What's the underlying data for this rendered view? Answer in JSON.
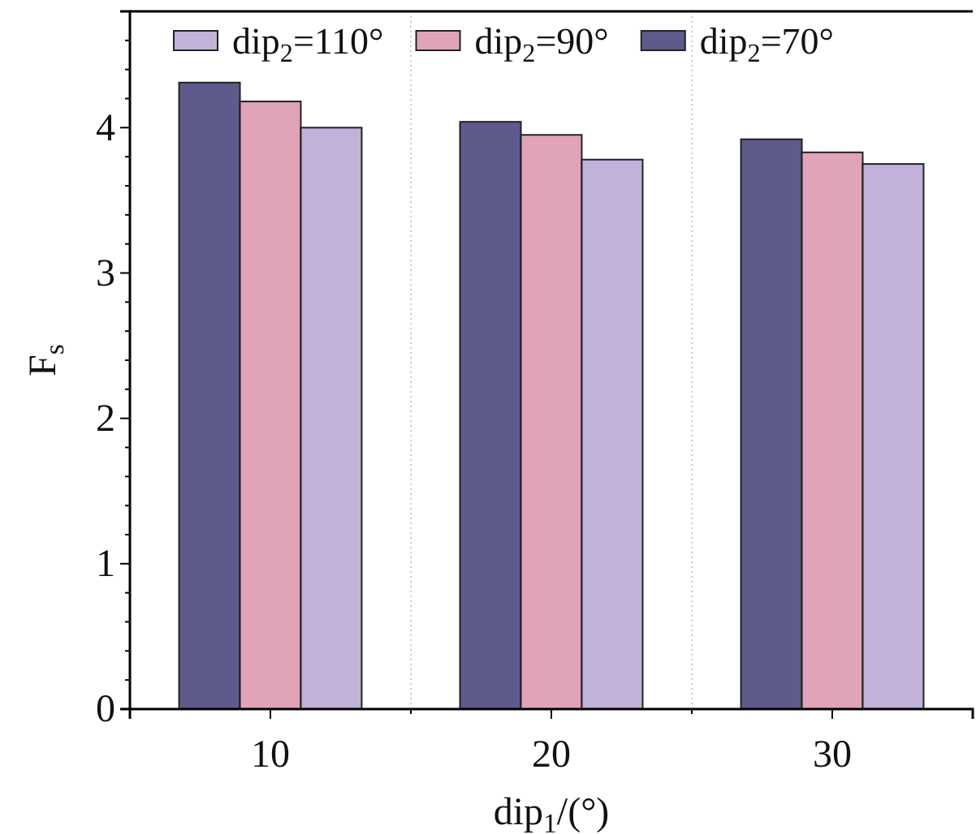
{
  "chart_data": {
    "type": "bar",
    "xlabel": "dip$_{1}$/(°)",
    "ylabel": "F$_{s}$",
    "categories": [
      "10",
      "20",
      "30"
    ],
    "series": [
      {
        "name": "dip$_{2}$=70°",
        "color": "#5e5b8c",
        "values": [
          4.31,
          4.04,
          3.92
        ]
      },
      {
        "name": "dip$_{2}$=90°",
        "color": "#e0a4b8",
        "values": [
          4.18,
          3.95,
          3.83
        ]
      },
      {
        "name": "dip$_{2}$=110°",
        "color": "#c2b1d8",
        "values": [
          4.0,
          3.78,
          3.75
        ]
      }
    ],
    "ylim": [
      0,
      4.8
    ],
    "yticks": [
      0,
      {
        "value": 0.2,
        "label": null
      },
      {
        "value": 0.4,
        "label": null
      },
      {
        "value": 0.6,
        "label": null
      },
      {
        "value": 0.8,
        "label": null
      },
      1,
      {
        "value": 1.2,
        "label": null
      },
      {
        "value": 1.4,
        "label": null
      },
      {
        "value": 1.6,
        "label": null
      },
      {
        "value": 1.8,
        "label": null
      },
      2,
      {
        "value": 2.2,
        "label": null
      },
      {
        "value": 2.4,
        "label": null
      },
      {
        "value": 2.6,
        "label": null
      },
      {
        "value": 2.8,
        "label": null
      },
      3,
      {
        "value": 3.2,
        "label": null
      },
      {
        "value": 3.4,
        "label": null
      },
      {
        "value": 3.6,
        "label": null
      },
      {
        "value": 3.8,
        "label": null
      },
      4,
      {
        "value": 4.2,
        "label": null
      },
      {
        "value": 4.4,
        "label": null
      },
      {
        "value": 4.6,
        "label": null
      }
    ],
    "grid": "x",
    "legend": "top"
  }
}
